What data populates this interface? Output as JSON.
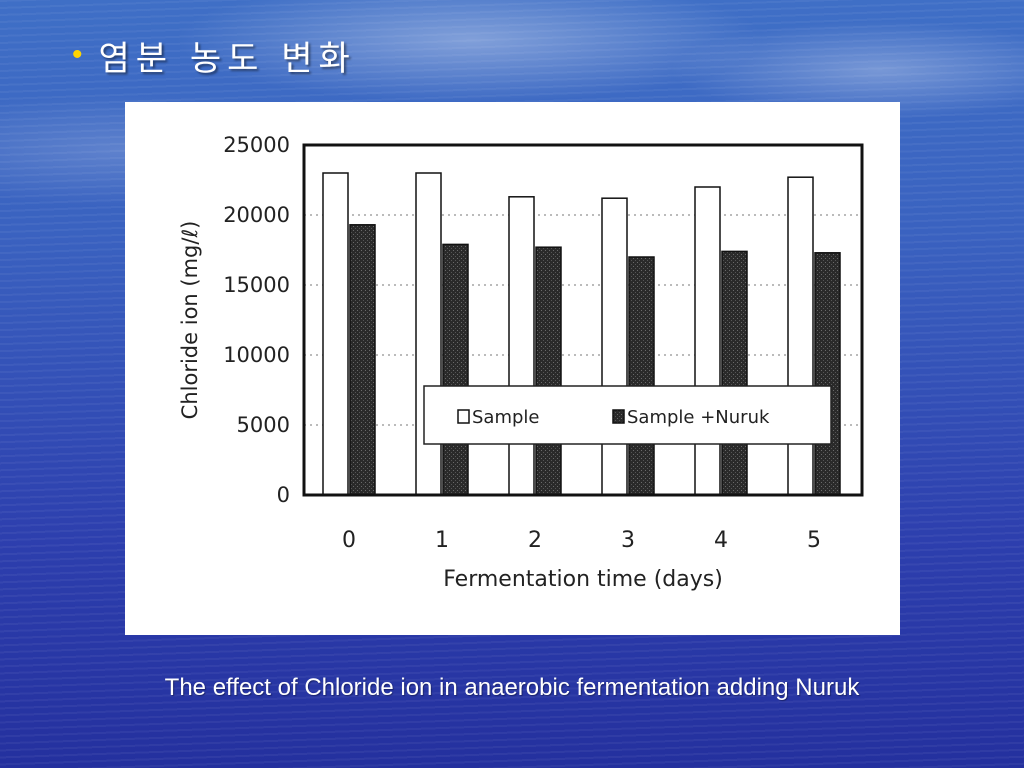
{
  "slide": {
    "bullet": "•",
    "title": "염분 농도 변화",
    "caption": "The effect of Chloride ion in anaerobic fermentation adding Nuruk"
  },
  "chart_data": {
    "type": "bar",
    "title": "",
    "xlabel": "Fermentation time (days)",
    "ylabel": "Chloride ion (mg/ℓ)",
    "categories": [
      "0",
      "1",
      "2",
      "3",
      "4",
      "5"
    ],
    "ylim": [
      0,
      25000
    ],
    "yticks": [
      "25000",
      "20000",
      "15000",
      "10000",
      "5000",
      "0"
    ],
    "grid": true,
    "legend_position": "lower-right",
    "series": [
      {
        "name": "Sample",
        "values": [
          23000,
          23000,
          21300,
          21200,
          22000,
          22700
        ],
        "color": "#ffffff"
      },
      {
        "name": "Sample +Nuruk",
        "values": [
          19300,
          17900,
          17700,
          17000,
          17400,
          17300
        ],
        "color": "#333333"
      }
    ]
  }
}
